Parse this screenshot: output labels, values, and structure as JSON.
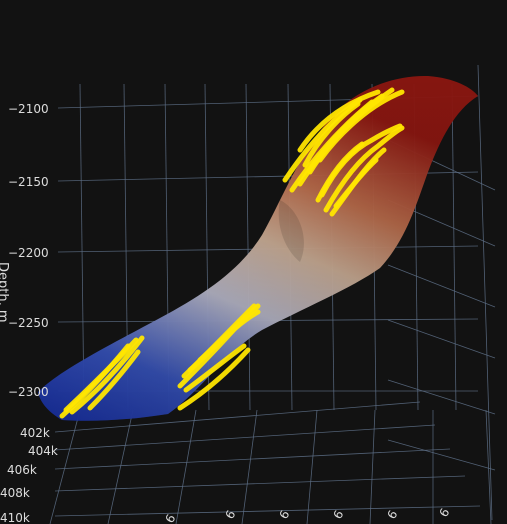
{
  "chart_data": {
    "type": "surface3d",
    "title": "",
    "zlabel": "Depth, m",
    "z_ticks": [
      -2100,
      -2150,
      -2200,
      -2250,
      -2300
    ],
    "y_tick_labels": [
      "402k",
      "404k",
      "406k",
      "408k",
      "410k"
    ],
    "x_tick_labels": [
      "6",
      "6",
      "6",
      "6",
      "6",
      "6"
    ],
    "surface": {
      "colorscale": "blue-white-red",
      "colors": {
        "low": "#1f3ec8",
        "mid": "#e6dcd4",
        "high": "#8c1a12"
      },
      "z_range": [
        -2315,
        -2085
      ]
    },
    "well_paths": {
      "color": "#ffe600",
      "clusters": [
        {
          "name_hidden": true,
          "depth_range": [
            -2310,
            -2275
          ],
          "count": 3
        },
        {
          "name_hidden": true,
          "depth_range": [
            -2320,
            -2255
          ],
          "count": 5
        },
        {
          "name_hidden": true,
          "depth_range": [
            -2170,
            -2090
          ],
          "count": 8
        }
      ]
    },
    "grid": true,
    "background": "#121212"
  }
}
